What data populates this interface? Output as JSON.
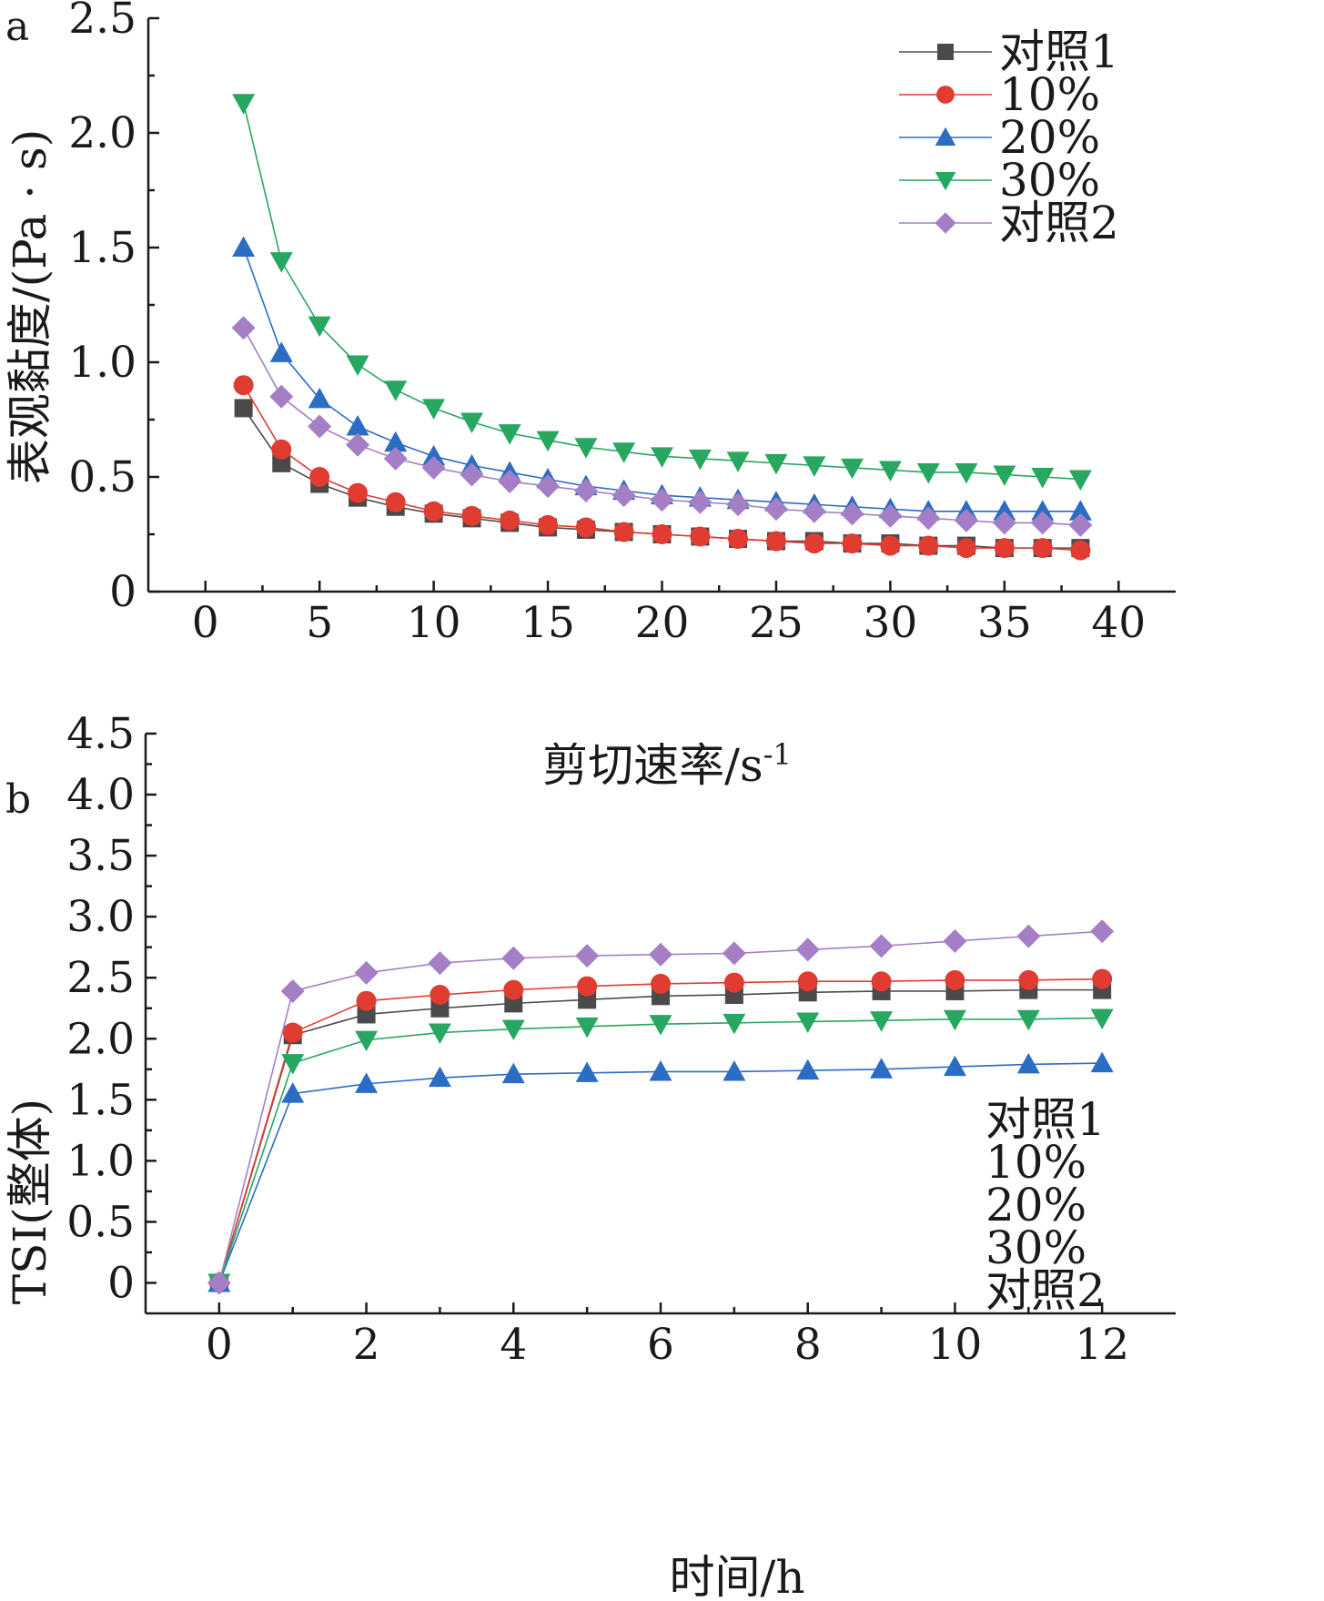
{
  "chart_data": [
    {
      "panel_label": "a",
      "type": "line",
      "xlabel": "剪切速率/s",
      "xlabel_sup": "-1",
      "ylabel": "表观黏度/(Pa · s)",
      "xlim": [
        -2.5,
        42.5
      ],
      "ylim": [
        0,
        2.5
      ],
      "x_ticks": [
        "0",
        "5",
        "10",
        "15",
        "20",
        "25",
        "30",
        "35",
        "40"
      ],
      "y_ticks": [
        "0",
        "0.5",
        "1.0",
        "1.5",
        "2.0",
        "2.5"
      ],
      "legend_position": "top-right",
      "x": [
        1.67,
        3.33,
        5.0,
        6.67,
        8.33,
        10.0,
        11.67,
        13.33,
        15.0,
        16.67,
        18.33,
        20.0,
        21.67,
        23.33,
        25.0,
        26.67,
        28.33,
        30.0,
        31.67,
        33.33,
        35.0,
        36.67,
        38.33
      ],
      "series": [
        {
          "name": "对照1",
          "color": "#4a4a4a",
          "marker": "square",
          "values": [
            0.8,
            0.56,
            0.47,
            0.41,
            0.37,
            0.34,
            0.32,
            0.3,
            0.28,
            0.27,
            0.26,
            0.25,
            0.24,
            0.23,
            0.22,
            0.22,
            0.21,
            0.21,
            0.2,
            0.2,
            0.19,
            0.19,
            0.19
          ]
        },
        {
          "name": "10%",
          "color": "#e03c31",
          "marker": "circle",
          "values": [
            0.9,
            0.62,
            0.5,
            0.43,
            0.39,
            0.35,
            0.33,
            0.31,
            0.29,
            0.28,
            0.26,
            0.25,
            0.24,
            0.23,
            0.22,
            0.21,
            0.21,
            0.2,
            0.2,
            0.19,
            0.19,
            0.19,
            0.18
          ]
        },
        {
          "name": "20%",
          "color": "#2b6cc4",
          "marker": "triangle-up",
          "values": [
            1.5,
            1.04,
            0.84,
            0.72,
            0.65,
            0.59,
            0.55,
            0.52,
            0.49,
            0.46,
            0.44,
            0.42,
            0.41,
            0.4,
            0.39,
            0.38,
            0.37,
            0.36,
            0.35,
            0.35,
            0.35,
            0.35,
            0.35
          ]
        },
        {
          "name": "30%",
          "color": "#27a760",
          "marker": "triangle-down",
          "values": [
            2.13,
            1.44,
            1.16,
            0.99,
            0.88,
            0.8,
            0.74,
            0.69,
            0.66,
            0.63,
            0.61,
            0.59,
            0.58,
            0.57,
            0.56,
            0.55,
            0.54,
            0.53,
            0.52,
            0.52,
            0.51,
            0.5,
            0.49
          ]
        },
        {
          "name": "对照2",
          "color": "#a57fc5",
          "marker": "diamond",
          "values": [
            1.15,
            0.85,
            0.72,
            0.64,
            0.58,
            0.54,
            0.51,
            0.48,
            0.46,
            0.44,
            0.42,
            0.4,
            0.39,
            0.38,
            0.36,
            0.35,
            0.34,
            0.33,
            0.32,
            0.31,
            0.3,
            0.3,
            0.29
          ]
        }
      ]
    },
    {
      "panel_label": "b",
      "type": "line",
      "xlabel": "时间/h",
      "ylabel": "TSI(整体)",
      "xlim": [
        -1,
        13
      ],
      "ylim": [
        -0.25,
        4.5
      ],
      "x_ticks": [
        "0",
        "2",
        "4",
        "6",
        "8",
        "10",
        "12"
      ],
      "y_ticks": [
        "0",
        "0.5",
        "1.0",
        "1.5",
        "2.0",
        "2.5",
        "3.0",
        "3.5",
        "4.0",
        "4.5"
      ],
      "legend_position": "bottom-right",
      "x": [
        0,
        1,
        2,
        3,
        4,
        5,
        6,
        7,
        8,
        9,
        10,
        11,
        12
      ],
      "series": [
        {
          "name": "对照1",
          "color": "#4a4a4a",
          "marker": "square",
          "values": [
            0,
            2.03,
            2.2,
            2.25,
            2.29,
            2.32,
            2.35,
            2.36,
            2.38,
            2.39,
            2.39,
            2.4,
            2.4
          ]
        },
        {
          "name": "10%",
          "color": "#e03c31",
          "marker": "circle",
          "values": [
            0,
            2.05,
            2.31,
            2.36,
            2.4,
            2.43,
            2.45,
            2.46,
            2.47,
            2.47,
            2.48,
            2.48,
            2.49
          ]
        },
        {
          "name": "20%",
          "color": "#2b6cc4",
          "marker": "triangle-up",
          "values": [
            0,
            1.55,
            1.63,
            1.68,
            1.71,
            1.72,
            1.73,
            1.73,
            1.74,
            1.75,
            1.77,
            1.79,
            1.8
          ]
        },
        {
          "name": "30%",
          "color": "#27a760",
          "marker": "triangle-down",
          "values": [
            0,
            1.8,
            1.99,
            2.05,
            2.08,
            2.1,
            2.12,
            2.13,
            2.14,
            2.15,
            2.16,
            2.16,
            2.17
          ]
        },
        {
          "name": "对照2",
          "color": "#a57fc5",
          "marker": "diamond",
          "values": [
            0,
            2.39,
            2.54,
            2.62,
            2.66,
            2.68,
            2.69,
            2.7,
            2.73,
            2.76,
            2.8,
            2.84,
            2.88
          ]
        }
      ]
    }
  ]
}
